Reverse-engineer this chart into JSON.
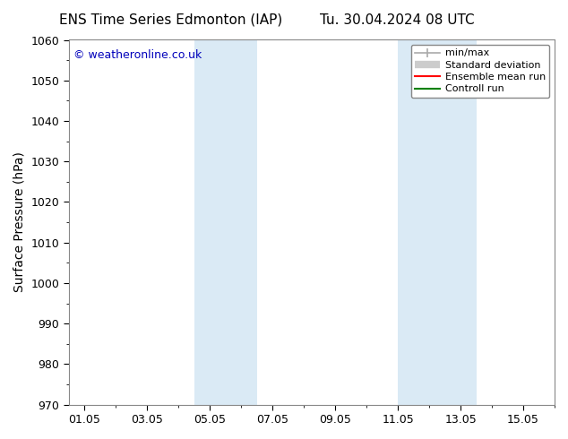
{
  "title_left": "ENS Time Series Edmonton (IAP)",
  "title_right": "Tu. 30.04.2024 08 UTC",
  "ylabel": "Surface Pressure (hPa)",
  "ylim": [
    970,
    1060
  ],
  "yticks": [
    970,
    980,
    990,
    1000,
    1010,
    1020,
    1030,
    1040,
    1050,
    1060
  ],
  "xtick_labels": [
    "01.05",
    "03.05",
    "05.05",
    "07.05",
    "09.05",
    "11.05",
    "13.05",
    "15.05"
  ],
  "xtick_positions": [
    0,
    2,
    4,
    6,
    8,
    10,
    12,
    14
  ],
  "xlim": [
    -0.5,
    15.0
  ],
  "shaded_bands": [
    {
      "x_start": 3.5,
      "x_end": 5.5
    },
    {
      "x_start": 10.0,
      "x_end": 12.5
    }
  ],
  "shade_color": "#daeaf5",
  "watermark_text": "© weatheronline.co.uk",
  "watermark_color": "#0000bb",
  "legend_items": [
    {
      "label": "min/max",
      "color": "#aaaaaa",
      "lw": 1.2,
      "type": "line_capped"
    },
    {
      "label": "Standard deviation",
      "color": "#cccccc",
      "lw": 6.0,
      "type": "line_thick"
    },
    {
      "label": "Ensemble mean run",
      "color": "#ff0000",
      "lw": 1.5,
      "type": "line"
    },
    {
      "label": "Controll run",
      "color": "#008000",
      "lw": 1.5,
      "type": "line"
    }
  ],
  "background_color": "#ffffff",
  "title_fontsize": 11,
  "tick_fontsize": 9,
  "ylabel_fontsize": 10,
  "legend_fontsize": 8,
  "watermark_fontsize": 9
}
